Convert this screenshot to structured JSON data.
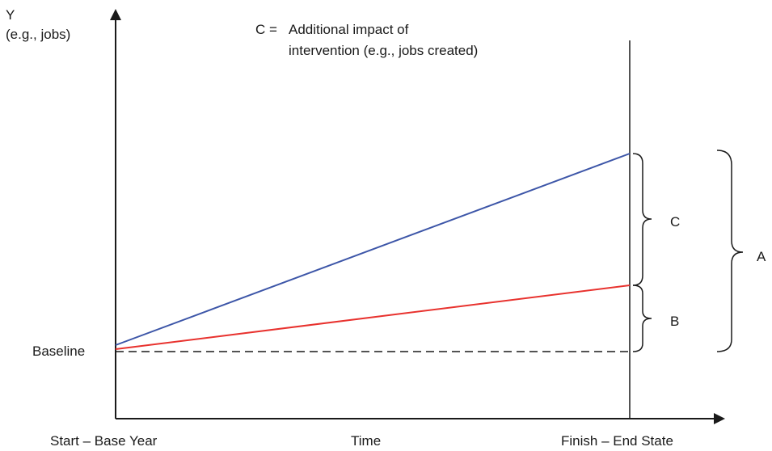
{
  "y_axis": {
    "name": "Y",
    "unit": "(e.g., jobs)"
  },
  "x_axis": {
    "name": "Time",
    "start": "Start – Base Year",
    "end": "Finish – End State"
  },
  "baseline_label": "Baseline",
  "legend": {
    "prefix": "C =",
    "line1": "Additional impact of",
    "line2": "intervention (e.g., jobs created)"
  },
  "braces": {
    "c": "C",
    "b": "B",
    "a": "A"
  },
  "colors": {
    "with_intervention": "#3d56a8",
    "without_intervention": "#e8322e",
    "axis": "#1a1a1a"
  }
}
